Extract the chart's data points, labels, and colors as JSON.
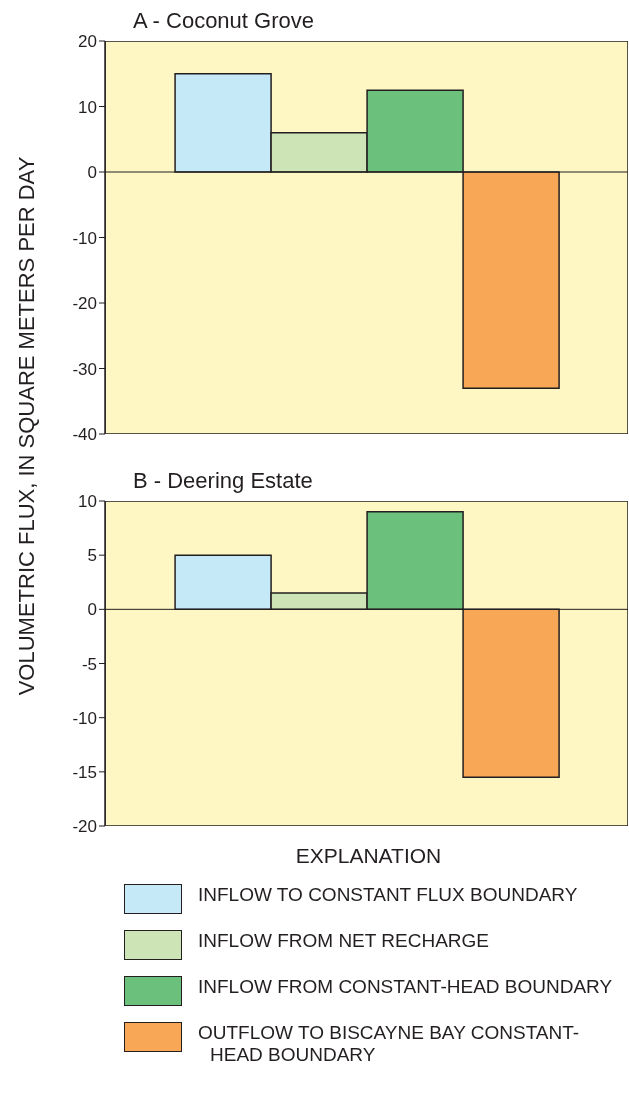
{
  "chart_data": [
    {
      "type": "bar",
      "title": "A - Coconut Grove",
      "ylabel": "VOLUMETRIC FLUX, IN SQUARE METERS PER DAY",
      "categories": [
        null
      ],
      "series": [
        {
          "color": "#c6e9f8",
          "values": [
            15
          ]
        },
        {
          "color": "#cde5b6",
          "values": [
            6
          ]
        },
        {
          "color": "#6bc17b",
          "values": [
            12.5
          ]
        },
        {
          "color": "#f7a755",
          "values": [
            -33
          ]
        }
      ],
      "ylim": [
        -40,
        20
      ],
      "yticks": [
        -40,
        -30,
        -20,
        -10,
        0,
        10,
        20
      ],
      "ref_lines": [
        {
          "axis": "y",
          "value": 0
        }
      ],
      "grid": false
    },
    {
      "type": "bar",
      "title": "B - Deering Estate",
      "categories": [
        null
      ],
      "series": [
        {
          "name": "INFLOW TO CONSTANT FLUX BOUNDARY",
          "color": "#c6e9f8",
          "values": [
            5
          ]
        },
        {
          "name": "INFLOW FROM NET RECHARGE",
          "color": "#cde5b6",
          "values": [
            1.5
          ]
        },
        {
          "name": "INFLOW FROM CONSTANT-HEAD BOUNDARY",
          "color": "#6bc17b",
          "values": [
            9
          ]
        },
        {
          "name": "OUTFLOW TO BISCAYNE BAY CONSTANT-HEAD BOUNDARY",
          "color": "#f7a755",
          "values": [
            -15.5
          ]
        }
      ],
      "ylim": [
        -20,
        10
      ],
      "yticks": [
        -20,
        -15,
        -10,
        -5,
        0,
        5,
        10
      ],
      "ref_lines": [
        {
          "axis": "y",
          "value": 0
        }
      ],
      "legend": "bottom",
      "legend_title": "EXPLANATION",
      "grid": false
    }
  ]
}
